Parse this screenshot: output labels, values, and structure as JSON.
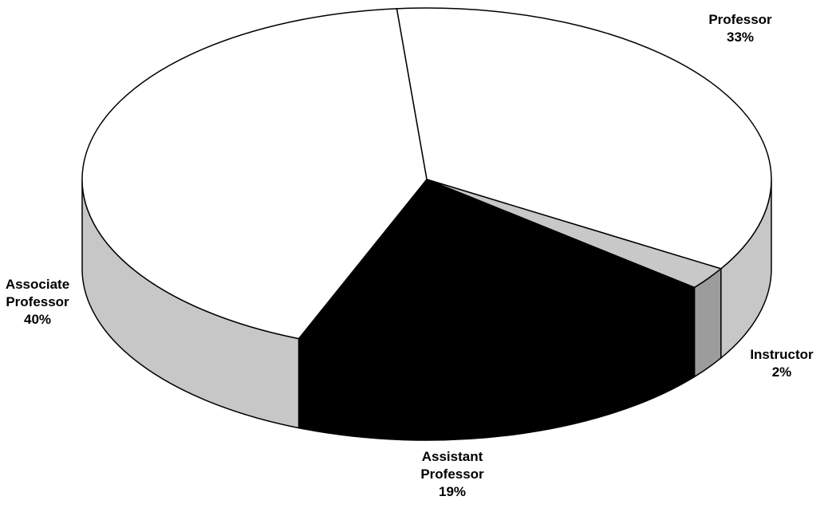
{
  "chart_data": {
    "type": "pie3d",
    "categories": [
      "Professor",
      "Instructor",
      "Assistant Professor",
      "Associate Professor"
    ],
    "values": [
      33,
      2,
      19,
      40
    ],
    "value_labels": [
      "33%",
      "2%",
      "19%",
      "40%"
    ],
    "colors": [
      "#ffffff",
      "#c8c8c8",
      "#000000",
      "#ffffff"
    ]
  }
}
